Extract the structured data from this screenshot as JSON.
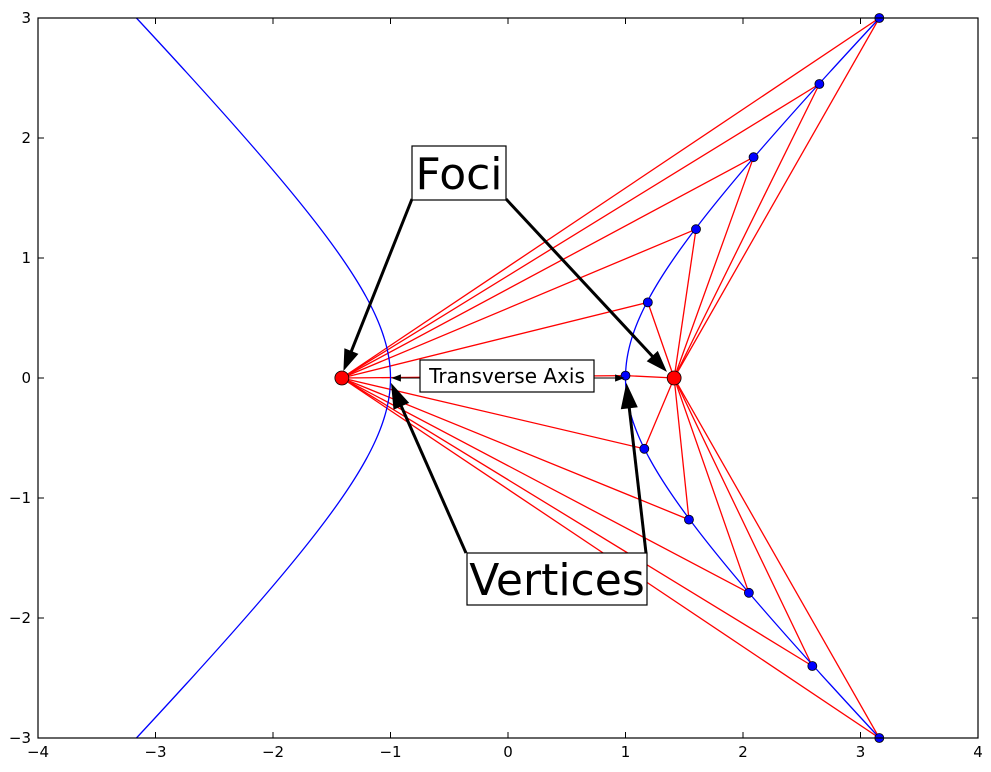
{
  "chart_data": {
    "type": "scatter",
    "xlim": [
      -4,
      4
    ],
    "ylim": [
      -3,
      3
    ],
    "xticks": [
      -4,
      -3,
      -2,
      -1,
      0,
      1,
      2,
      3,
      4
    ],
    "yticks": [
      -3,
      -2,
      -1,
      0,
      1,
      2,
      3
    ],
    "xtick_labels": [
      "−4",
      "−3",
      "−2",
      "−1",
      "0",
      "1",
      "2",
      "3",
      "4"
    ],
    "ytick_labels": [
      "−3",
      "−2",
      "−1",
      "0",
      "1",
      "2",
      "3"
    ],
    "grid": false,
    "hyperbola": {
      "a": 1,
      "b": 1,
      "color": "#0000ff"
    },
    "foci": [
      [
        -1.414,
        0
      ],
      [
        1.414,
        0
      ]
    ],
    "hyperbola_points": [
      [
        3.16,
        3.0
      ],
      [
        2.65,
        2.45
      ],
      [
        2.09,
        1.84
      ],
      [
        1.6,
        1.24
      ],
      [
        1.19,
        0.63
      ],
      [
        1.0,
        0.02
      ],
      [
        1.16,
        -0.59
      ],
      [
        1.54,
        -1.18
      ],
      [
        2.05,
        -1.79
      ],
      [
        2.59,
        -2.4
      ],
      [
        3.16,
        -3.0
      ]
    ],
    "colors": {
      "curve": "#0000ff",
      "focal_lines": "#ff0000",
      "focus": "#ff0000",
      "point": "#0000ff"
    },
    "annotations": {
      "foci": {
        "text": "Foci"
      },
      "vertices": {
        "text": "Vertices"
      },
      "transverse_axis": {
        "text": "Transverse Axis"
      }
    }
  }
}
